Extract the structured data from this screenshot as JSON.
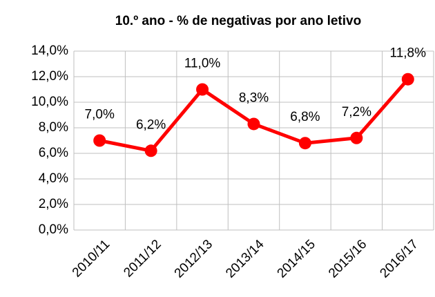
{
  "chart_data": {
    "type": "line",
    "title": "10.º ano - % de negativas por ano letivo",
    "categories": [
      "2010/11",
      "2011/12",
      "2012/13",
      "2013/14",
      "2014/15",
      "2015/16",
      "2016/17"
    ],
    "series": [
      {
        "color": "#ff0000",
        "values": [
          7.0,
          6.2,
          11.0,
          8.3,
          6.8,
          7.2,
          11.8
        ],
        "value_labels": [
          "7,0%",
          "6,2%",
          "11,0%",
          "8,3%",
          "6,8%",
          "7,2%",
          "11,8%"
        ]
      }
    ],
    "ylim": [
      0,
      14
    ],
    "yticks": [
      {
        "value": 0,
        "label": "0,0%"
      },
      {
        "value": 2,
        "label": "2,0%"
      },
      {
        "value": 4,
        "label": "4,0%"
      },
      {
        "value": 6,
        "label": "6,0%"
      },
      {
        "value": 8,
        "label": "8,0%"
      },
      {
        "value": 10,
        "label": "10,0%"
      },
      {
        "value": 12,
        "label": "12,0%"
      },
      {
        "value": 14,
        "label": "14,0%"
      }
    ],
    "grid": true
  }
}
